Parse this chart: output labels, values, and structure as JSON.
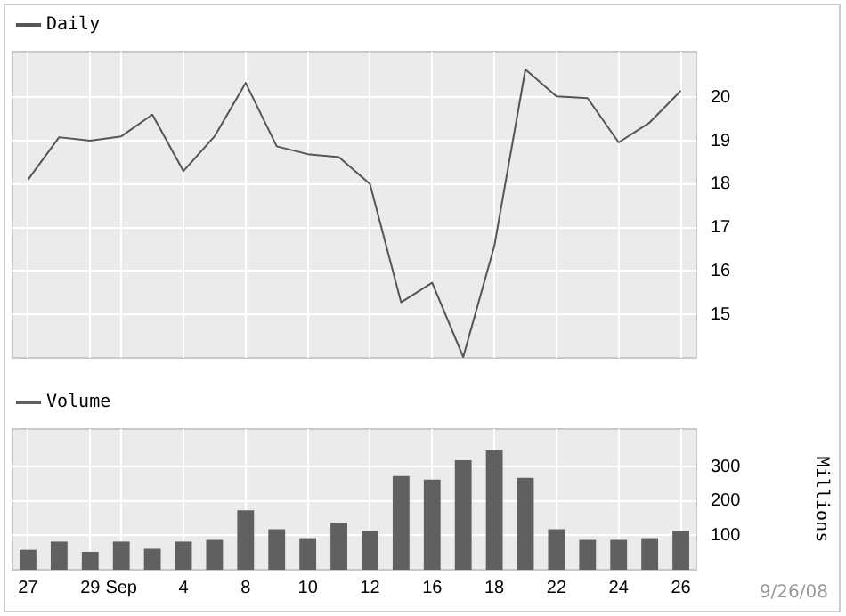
{
  "chart_data": [
    {
      "type": "line",
      "categories": [
        null,
        null,
        null,
        null,
        null,
        null,
        null,
        null,
        null,
        null,
        null,
        null,
        null,
        null,
        null,
        null,
        null,
        null,
        null,
        null,
        null,
        null
      ],
      "series": [
        {
          "name": "Daily",
          "color": "#555555",
          "values": [
            18.1,
            19.08,
            19.0,
            19.1,
            19.6,
            18.3,
            19.1,
            20.33,
            18.87,
            18.69,
            18.62,
            18.0,
            15.28,
            15.73,
            14.02,
            16.57,
            20.64,
            20.02,
            19.98,
            18.96,
            19.42,
            20.15
          ]
        }
      ],
      "ylim": [
        14,
        21.05
      ],
      "yticks": [
        15,
        16,
        17,
        18,
        19,
        20
      ],
      "grid": true,
      "legend": "top left",
      "tick_labels": "y"
    },
    {
      "type": "bar",
      "categories": [
        "27",
        null,
        "29",
        "Sep",
        null,
        "4",
        null,
        "8",
        null,
        "10",
        null,
        "12",
        null,
        "16",
        null,
        "18",
        null,
        "22",
        null,
        "24",
        null,
        "26"
      ],
      "series": [
        {
          "name": "Volume",
          "color": "#606060",
          "values": [
            58,
            82,
            52,
            82,
            61,
            82,
            87,
            173,
            118,
            92,
            137,
            113,
            273,
            263,
            319,
            348,
            268,
            118,
            87,
            87,
            92,
            113
          ]
        }
      ],
      "ylabel": "Millions",
      "ylim": [
        0,
        410
      ],
      "yticks": [
        100,
        200,
        300
      ],
      "grid": true,
      "legend": "top left",
      "annotations": [
        "9/26/08"
      ]
    }
  ]
}
